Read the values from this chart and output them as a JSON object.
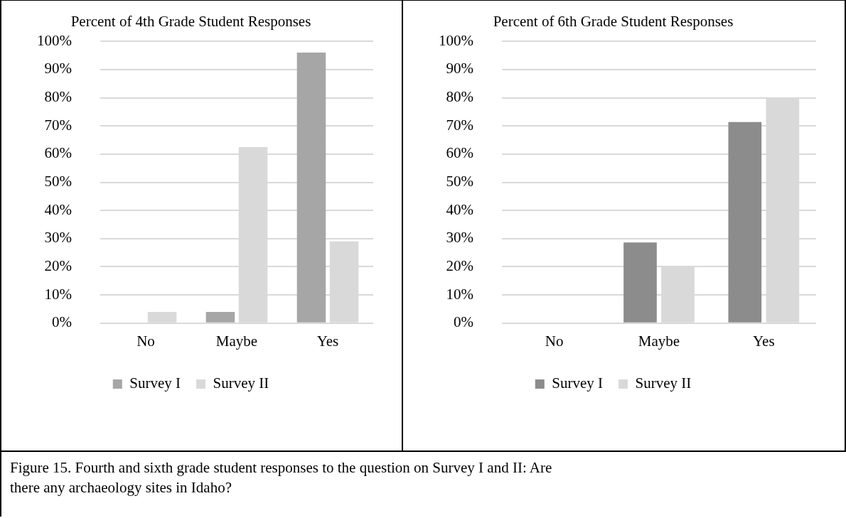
{
  "chart_data": [
    {
      "type": "bar",
      "title": "Percent of 4th Grade Student Responses",
      "categories": [
        "No",
        "Maybe",
        "Yes"
      ],
      "series": [
        {
          "name": "Survey I",
          "color": "#a6a6a6",
          "values": [
            0,
            4,
            96
          ]
        },
        {
          "name": "Survey II",
          "color": "#d9d9d9",
          "values": [
            4,
            62.5,
            29
          ]
        }
      ],
      "ylim": [
        0,
        100
      ],
      "yticks": [
        {
          "value": 0,
          "label": "0%"
        },
        {
          "value": 10,
          "label": "10%"
        },
        {
          "value": 20,
          "label": "20%"
        },
        {
          "value": 30,
          "label": "30%"
        },
        {
          "value": 40,
          "label": "40%"
        },
        {
          "value": 50,
          "label": "50%"
        },
        {
          "value": 60,
          "label": "60%"
        },
        {
          "value": 70,
          "label": "70%"
        },
        {
          "value": 80,
          "label": "80%"
        },
        {
          "value": 90,
          "label": "90%"
        },
        {
          "value": 100,
          "label": "100%"
        }
      ],
      "grid": "y",
      "legend": "bottom",
      "annotations": [
        "Figure 15. Fourth and sixth grade student responses to the question on Survey I and II: Are there any archaeology sites in Idaho?"
      ]
    },
    {
      "type": "bar",
      "title": "Percent of 6th Grade Student Responses",
      "categories": [
        "No",
        "Maybe",
        "Yes"
      ],
      "series": [
        {
          "name": "Survey I",
          "color": "#8c8c8c",
          "values": [
            0,
            28.6,
            71.4
          ]
        },
        {
          "name": "Survey II",
          "color": "#d9d9d9",
          "values": [
            0,
            20,
            80
          ]
        }
      ],
      "ylim": [
        0,
        100
      ],
      "yticks": [
        {
          "value": 0,
          "label": "0%"
        },
        {
          "value": 10,
          "label": "10%"
        },
        {
          "value": 20,
          "label": "20%"
        },
        {
          "value": 30,
          "label": "30%"
        },
        {
          "value": 40,
          "label": "40%"
        },
        {
          "value": 50,
          "label": "50%"
        },
        {
          "value": 60,
          "label": "60%"
        },
        {
          "value": 70,
          "label": "70%"
        },
        {
          "value": 80,
          "label": "80%"
        },
        {
          "value": 90,
          "label": "90%"
        },
        {
          "value": 100,
          "label": "100%"
        }
      ],
      "grid": "y",
      "legend": "bottom"
    }
  ]
}
